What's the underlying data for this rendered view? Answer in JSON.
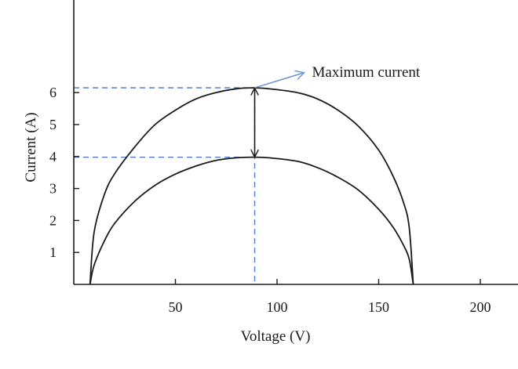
{
  "chart_data": {
    "type": "line",
    "xlabel": "Voltage (V)",
    "ylabel": "Current (A)",
    "xlim": [
      0,
      210
    ],
    "ylim": [
      0,
      9
    ],
    "x_ticks": [
      {
        "value": 50,
        "label": "50"
      },
      {
        "value": 100,
        "label": "100"
      },
      {
        "value": 150,
        "label": "150"
      },
      {
        "value": 200,
        "label": "200"
      }
    ],
    "y_ticks": [
      {
        "value": 1,
        "label": "1"
      },
      {
        "value": 2,
        "label": "2"
      },
      {
        "value": 3,
        "label": "3"
      },
      {
        "value": 4,
        "label": "4"
      },
      {
        "value": 5,
        "label": "5"
      },
      {
        "value": 6,
        "label": "6"
      }
    ],
    "series": [
      {
        "color": "#1a1a1a",
        "x": [
          8,
          10,
          15,
          20,
          30,
          40,
          50,
          60,
          70,
          80,
          88,
          96,
          110,
          120,
          130,
          140,
          150,
          157,
          162,
          165,
          167
        ],
        "y": [
          0,
          1.63,
          2.8,
          3.45,
          4.3,
          5.0,
          5.45,
          5.8,
          6.0,
          6.12,
          6.15,
          6.12,
          6.0,
          5.8,
          5.45,
          4.95,
          4.2,
          3.4,
          2.6,
          1.8,
          0
        ]
      },
      {
        "color": "#1a1a1a",
        "x": [
          8,
          10,
          15,
          20,
          30,
          40,
          50,
          60,
          70,
          80,
          88,
          96,
          110,
          120,
          130,
          140,
          150,
          157,
          162,
          165,
          167
        ],
        "y": [
          0,
          0.6,
          1.35,
          1.9,
          2.6,
          3.1,
          3.45,
          3.7,
          3.88,
          3.96,
          3.98,
          3.96,
          3.85,
          3.65,
          3.35,
          2.95,
          2.35,
          1.8,
          1.25,
          0.8,
          0
        ]
      }
    ],
    "annotations": {
      "max_current_label": "Maximum current",
      "peak_voltage": 89,
      "upper_peak_current": 6.15,
      "lower_peak_current": 3.98,
      "guide_color": "#4a72c8",
      "arrow_color": "#6a8fd6"
    }
  }
}
